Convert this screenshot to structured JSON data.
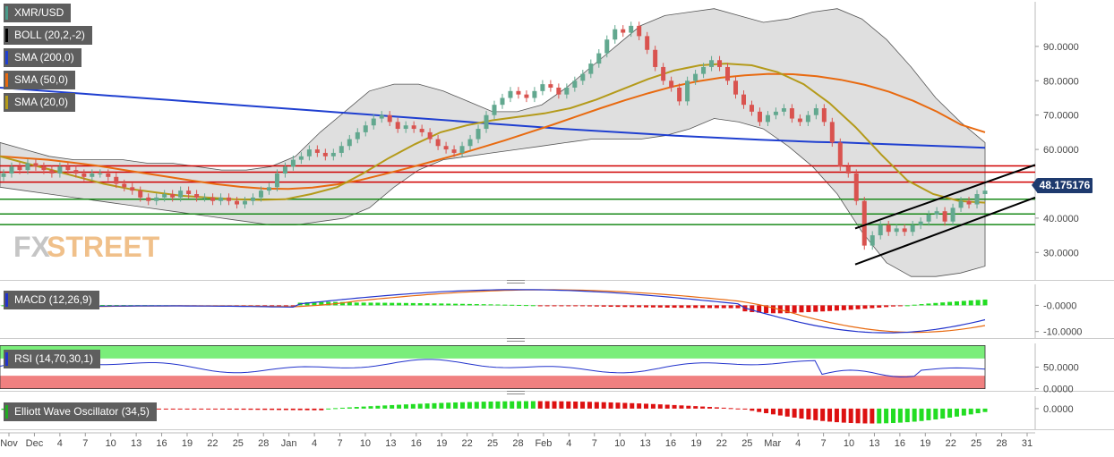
{
  "legends": {
    "price": [
      {
        "label": "XMR/USD",
        "color": "#4a9a8a"
      },
      {
        "label": "BOLL (20,2,-2)",
        "color": "#000000"
      },
      {
        "label": "SMA (200,0)",
        "color": "#1f3fd0"
      },
      {
        "label": "SMA (50,0)",
        "color": "#e86a10"
      },
      {
        "label": "SMA (20,0)",
        "color": "#b49a1a"
      }
    ],
    "macd": {
      "label": "MACD (12,26,9)",
      "color": "#2233cc"
    },
    "rsi": {
      "label": "RSI (14,70,30,1)",
      "color": "#2233cc"
    },
    "ewo": {
      "label": "Elliott Wave Oscillator (34,5)",
      "color": "#22aa22"
    }
  },
  "watermark": {
    "fx": "FX",
    "street": "STREET"
  },
  "current_price": "48.175176",
  "colors": {
    "up": "#62a88f",
    "down": "#d9534f",
    "sma200": "#1f3fd0",
    "sma50": "#e86a10",
    "sma20": "#b49a1a",
    "boll": "#dcdcdc",
    "resistance": "#d00000",
    "support": "#1a8a1a",
    "channel": "#000000"
  },
  "chart_data": [
    {
      "type": "line",
      "title": "XMR/USD",
      "ylim": [
        22,
        103
      ],
      "y_ticks": [
        "90.0000",
        "80.0000",
        "70.0000",
        "60.0000",
        "50.0000",
        "40.0000",
        "30.0000"
      ],
      "y_tick_values": [
        90,
        80,
        70,
        60,
        50,
        40,
        30
      ],
      "x_tick_labels": [
        "Nov",
        "Dec",
        "4",
        "7",
        "10",
        "13",
        "16",
        "19",
        "22",
        "25",
        "28",
        "Jan",
        "4",
        "7",
        "10",
        "13",
        "16",
        "19",
        "22",
        "25",
        "28",
        "Feb",
        "4",
        "7",
        "10",
        "13",
        "16",
        "19",
        "22",
        "25",
        "Mar",
        "4",
        "7",
        "10",
        "13",
        "16",
        "19",
        "22",
        "25",
        "28",
        "31"
      ],
      "candles_close": [
        53,
        55,
        54,
        56,
        55,
        54,
        53,
        55,
        54,
        53,
        52,
        53,
        53,
        52,
        50,
        49,
        48,
        46,
        45,
        46,
        47,
        46,
        48,
        47,
        46,
        46,
        45,
        46,
        45,
        44,
        45,
        46,
        48,
        49,
        53,
        55,
        57,
        58,
        60,
        59,
        58,
        59,
        61,
        63,
        65,
        67,
        69,
        70,
        68,
        66,
        67,
        66,
        65,
        63,
        61,
        60,
        59,
        61,
        63,
        66,
        70,
        73,
        75,
        77,
        76,
        75,
        77,
        79,
        78,
        76,
        78,
        80,
        82,
        85,
        88,
        92,
        95,
        94,
        96,
        93,
        89,
        84,
        80,
        78,
        74,
        80,
        82,
        84,
        86,
        84,
        80,
        76,
        73,
        71,
        68,
        70,
        71,
        72,
        69,
        68,
        70,
        72,
        68,
        62,
        55,
        53,
        45,
        32,
        35,
        38,
        36,
        37,
        36,
        38,
        39,
        41,
        42,
        39,
        43,
        45,
        44,
        47,
        48
      ],
      "sma200": [
        78,
        77.4,
        76.8,
        76.2,
        75.6,
        75,
        74.4,
        73.8,
        73.2,
        72.6,
        72,
        71.4,
        70.8,
        70.2,
        69.6,
        69,
        68.4,
        67.8,
        67.2,
        66.6,
        66,
        65.5,
        65,
        64.5,
        64,
        63.6,
        63.2,
        62.8,
        62.5,
        62.2,
        62,
        61.7,
        61.4,
        61.1,
        60.8,
        60.5
      ],
      "sma50": [
        58,
        57.5,
        57,
        56.2,
        55.3,
        54.2,
        53.1,
        52,
        50.9,
        49.9,
        49.1,
        48.6,
        48.5,
        48.9,
        49.8,
        51.1,
        52.8,
        54.6,
        56.5,
        58.4,
        60.5,
        62.6,
        64.9,
        67.2,
        69.6,
        72,
        74.3,
        76.4,
        78.3,
        79.8,
        80.9,
        81.6,
        82,
        81.9,
        81.3,
        80.3,
        78.8,
        76.8,
        74.2,
        71,
        67.2,
        65
      ],
      "sma20": [
        58,
        56,
        54,
        52,
        50,
        48.5,
        47.5,
        46.5,
        46,
        45.5,
        45.3,
        45.5,
        47,
        49,
        53,
        57.5,
        61.5,
        65,
        67,
        68.5,
        69.5,
        70.5,
        72,
        74.5,
        77.5,
        80.5,
        83,
        84.5,
        85,
        84.5,
        82.5,
        79,
        73.5,
        66.5,
        58.5,
        51,
        47,
        45,
        44.5
      ],
      "boll_upper": [
        62,
        60,
        58,
        57,
        57,
        57,
        56,
        56,
        55,
        54,
        54,
        55,
        58,
        65,
        71,
        77,
        79,
        79,
        77,
        74,
        71,
        71,
        73,
        78,
        84,
        90,
        96,
        99,
        100,
        101,
        99,
        97,
        98,
        100,
        101,
        98,
        92,
        84,
        75,
        68,
        62
      ],
      "boll_lower": [
        49,
        48,
        47,
        46,
        45,
        44,
        43,
        42,
        41,
        40,
        39,
        38,
        38,
        39,
        40,
        43,
        49,
        54,
        57,
        58,
        59,
        60,
        61,
        62,
        63,
        63,
        63,
        64,
        66,
        69,
        68,
        66,
        61,
        55,
        47,
        36,
        27,
        23,
        23,
        24,
        26
      ],
      "resistance": [
        55.2,
        53.4,
        50.5
      ],
      "support": [
        45.5,
        41.2,
        38.1
      ],
      "channel": [
        {
          "from": [
            0,
            26
          ],
          "to": [
            1,
            46
          ]
        },
        {
          "from": [
            0,
            36
          ],
          "to": [
            1,
            55
          ]
        }
      ]
    },
    {
      "type": "bar",
      "title": "MACD (12,26,9)",
      "ylim": [
        -12.5,
        8
      ],
      "y_ticks": [
        "-0.0000",
        "-10.0000"
      ],
      "y_tick_values": [
        0,
        -10
      ]
    },
    {
      "type": "line",
      "title": "RSI (14,70,30,1)",
      "ylim": [
        -5,
        105
      ],
      "y_ticks": [
        "50.0000",
        "0.0000"
      ],
      "y_tick_values": [
        50,
        0
      ]
    },
    {
      "type": "bar",
      "title": "Elliott Wave Oscillator (34,5)",
      "ylim": [
        -25,
        15
      ],
      "y_ticks": [
        "0.0000"
      ],
      "y_tick_values": [
        0
      ]
    }
  ]
}
